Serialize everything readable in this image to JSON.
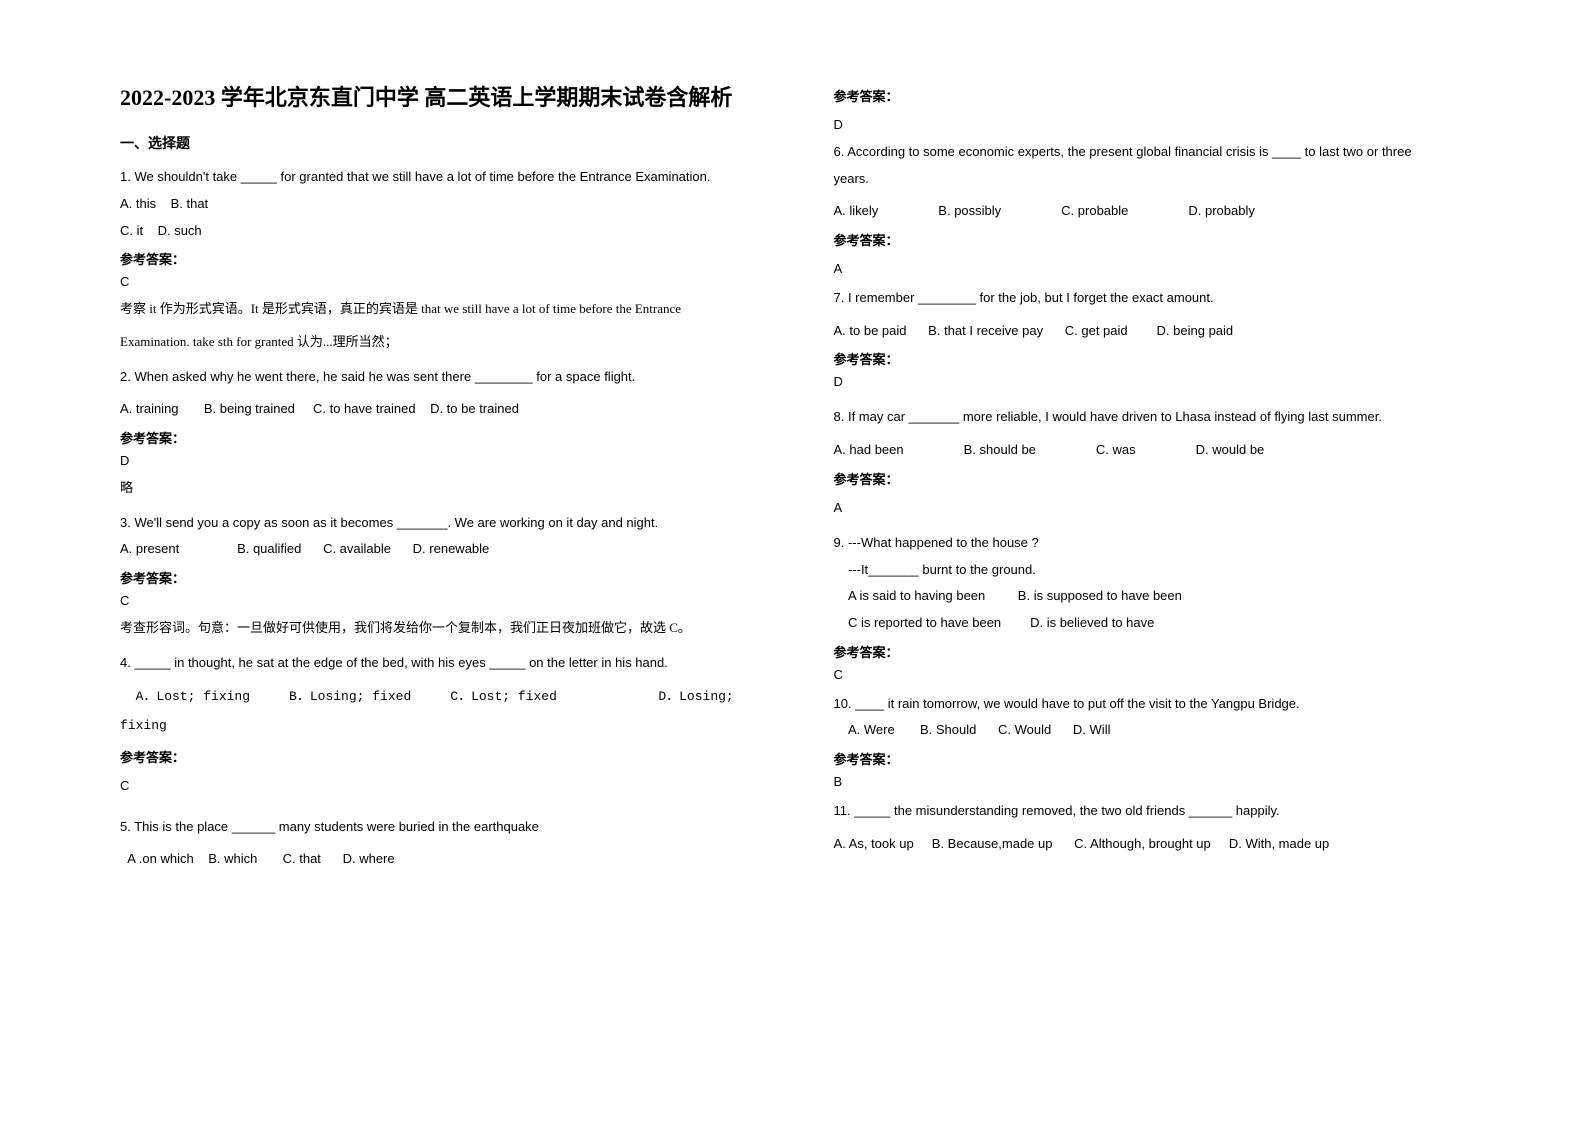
{
  "title": "2022-2023 学年北京东直门中学 高二英语上学期期末试卷含解析",
  "section1": "一、选择题",
  "q1": {
    "text": "1. We shouldn't take _____ for granted that we still have a lot of time before the Entrance Examination.",
    "optA": "A. this",
    "optB": "B. that",
    "optC": "C. it",
    "optD": "D. such",
    "answer_label": "参考答案：",
    "answer": "C",
    "explain1": "考察 it 作为形式宾语。It 是形式宾语，真正的宾语是 that we still have a lot of time before the Entrance",
    "explain2": "Examination. take sth for granted 认为...理所当然；"
  },
  "q2": {
    "text": "2. When asked why he went there, he said he was sent there ________ for a space flight.",
    "optA": "A. training",
    "optB": "B. being trained",
    "optC": "C. to have trained",
    "optD": "D. to be trained",
    "answer_label": "参考答案：",
    "answer": "D",
    "note": "略"
  },
  "q3": {
    "text": "3. We'll send you a copy as soon as it becomes _______. We are working on it day and night.",
    "optA": "A. present",
    "optB": "B. qualified",
    "optC": "C. available",
    "optD": "D. renewable",
    "answer_label": "参考答案：",
    "answer": "C",
    "explain": "考查形容词。句意：一旦做好可供使用，我们将发给你一个复制本，我们正日夜加班做它，故选 C。"
  },
  "q4": {
    "text": "4. _____ in thought, he sat at the edge of the bed, with his eyes _____ on the letter in his hand.",
    "optA": "A．Lost; fixing",
    "optB": "B．Losing; fixed",
    "optC": "C．Lost; fixed",
    "optD": "D．Losing;",
    "optD2": "fixing",
    "answer_label": "参考答案：",
    "answer": "C"
  },
  "q5": {
    "text": "5.  This is the place ______ many students were buried in the earthquake",
    "optA": "A .on which",
    "optB": "B. which",
    "optC": "C. that",
    "optD": "D. where"
  },
  "q5ans": {
    "answer_label": "参考答案：",
    "answer": "D"
  },
  "q6": {
    "text": "6. According to some economic experts, the present global financial crisis is ____ to last two or three",
    "text2": "years.",
    "optA": "A. likely",
    "optB": "B. possibly",
    "optC": "C. probable",
    "optD": "D. probably",
    "answer_label": "参考答案：",
    "answer": "A"
  },
  "q7": {
    "text": "7. I remember ________ for the job, but I forget the exact amount.",
    "optA": "A. to be paid",
    "optB": "B. that I receive pay",
    "optC": "C. get paid",
    "optD": "D. being paid",
    "answer_label": "参考答案：",
    "answer": "D"
  },
  "q8": {
    "text": "8. If may car _______ more reliable, I would have driven to Lhasa instead of flying last summer.",
    "optA": "A. had been",
    "optB": "B. should be",
    "optC": "C. was",
    "optD": "D. would be",
    "answer_label": "参考答案：",
    "answer": "A"
  },
  "q9": {
    "text": "9. ---What happened to the house ?",
    "line2": "---It_______ burnt to the ground.",
    "optA": "A is said to having been",
    "optB": "B. is supposed to have been",
    "optC": "C is reported to have been",
    "optD": "D. is believed to have",
    "answer_label": "参考答案：",
    "answer": "C"
  },
  "q10": {
    "text": "10. ____ it rain tomorrow, we would have to put off the visit to the Yangpu Bridge.",
    "optA": "A. Were",
    "optB": "B. Should",
    "optC": "C. Would",
    "optD": "D. Will",
    "answer_label": "参考答案：",
    "answer": "B"
  },
  "q11": {
    "text": "11. _____ the misunderstanding removed, the two old friends ______ happily.",
    "optA": "A. As, took up",
    "optB": "B. Because,made up",
    "optC": "C. Although, brought up",
    "optD": "D. With, made up"
  }
}
